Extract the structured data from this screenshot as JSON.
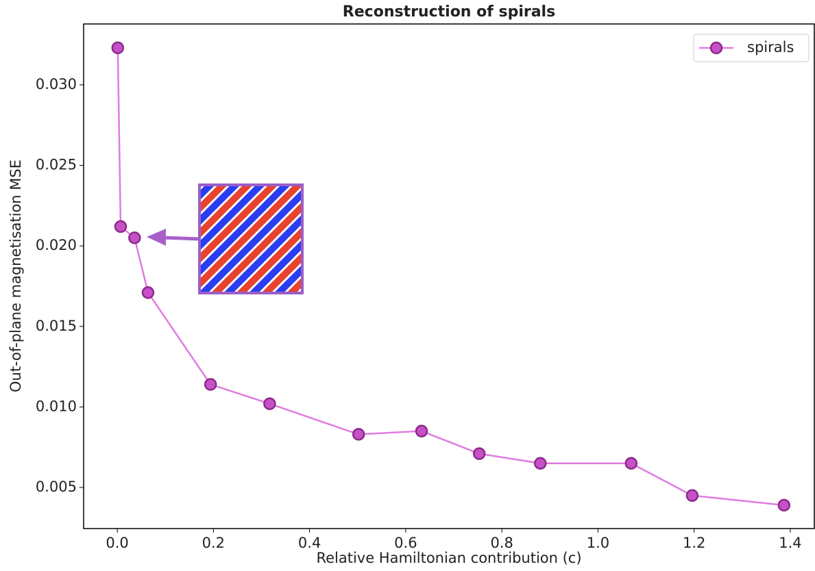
{
  "chart_data": {
    "type": "line",
    "title": "Reconstruction of spirals",
    "xlabel": "Relative Hamiltonian contribution (c)",
    "ylabel": "Out-of-plane magnetisation MSE",
    "x": [
      0.001,
      0.007,
      0.036,
      0.064,
      0.194,
      0.317,
      0.502,
      0.633,
      0.753,
      0.88,
      1.069,
      1.196,
      1.387
    ],
    "series": [
      {
        "name": "spirals",
        "color": "#e07be0",
        "marker_color": "#c651c6",
        "marker_edge": "#8b2a8b",
        "values": [
          0.0323,
          0.0212,
          0.0205,
          0.0171,
          0.0114,
          0.0102,
          0.0083,
          0.0085,
          0.0071,
          0.0065,
          0.0065,
          0.0045,
          0.0039
        ]
      }
    ],
    "xlim": [
      -0.07,
      1.45
    ],
    "ylim": [
      0.00245,
      0.03378
    ],
    "xticks": [
      {
        "value": 0,
        "label": "0.0"
      },
      0.2,
      0.4,
      0.6,
      0.8,
      {
        "value": 1,
        "label": "1.0"
      },
      1.2,
      1.4
    ],
    "yticks": [
      0.005,
      {
        "value": 0.01,
        "label": "0.010"
      },
      0.015,
      {
        "value": 0.02,
        "label": "0.020"
      },
      0.025,
      {
        "value": 0.03,
        "label": "0.030"
      }
    ],
    "legend": "upper right"
  }
}
